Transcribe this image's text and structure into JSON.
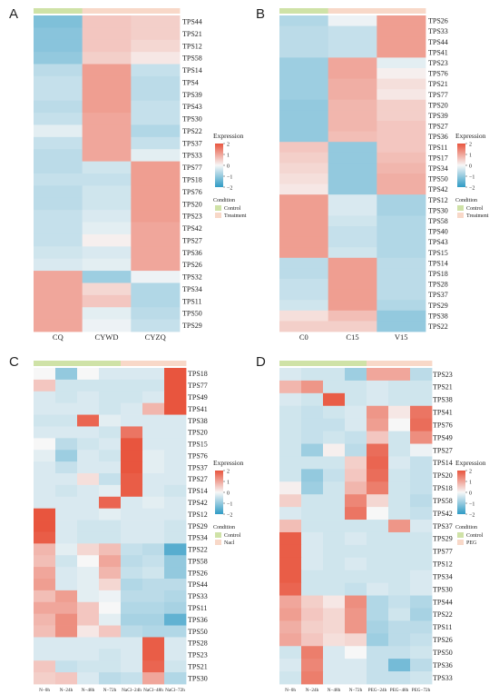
{
  "figure": {
    "colors": {
      "low": "#2f9bc5",
      "mid": "#f7f7f7",
      "high": "#e8553e",
      "control_bar": "#cfe2a7",
      "treatment_bar": "#f8d8c8"
    }
  },
  "legend": {
    "expression_title": "Expression",
    "expression_ticks": [
      "2",
      "1",
      "0",
      "−1",
      "−2"
    ],
    "condition_title": "Condition"
  },
  "chart_data": [
    {
      "type": "heatmap",
      "panel_label": "A",
      "scale": [
        -2,
        2
      ],
      "conditions": [
        "Control",
        "Treatment"
      ],
      "column_conditions": [
        "Control",
        "Treatment",
        "Treatment"
      ],
      "columns": [
        "CQ",
        "CYWD",
        "CYZQ"
      ],
      "rows": [
        "TPS44",
        "TPS21",
        "TPS12",
        "TPS58",
        "TPS14",
        "TPS4",
        "TPS39",
        "TPS43",
        "TPS30",
        "TPS22",
        "TPS37",
        "TPS33",
        "TPS77",
        "TPS18",
        "TPS76",
        "TPS20",
        "TPS23",
        "TPS42",
        "TPS27",
        "TPS36",
        "TPS26",
        "TPS32",
        "TPS34",
        "TPS11",
        "TPS50",
        "TPS29"
      ],
      "values": [
        [
          -1.2,
          0.6,
          0.5
        ],
        [
          -1.1,
          0.6,
          0.5
        ],
        [
          -1.1,
          0.6,
          0.4
        ],
        [
          -1.0,
          0.5,
          0.2
        ],
        [
          -0.6,
          1.1,
          -0.5
        ],
        [
          -0.5,
          1.1,
          -0.6
        ],
        [
          -0.5,
          1.1,
          -0.6
        ],
        [
          -0.6,
          1.1,
          -0.5
        ],
        [
          -0.5,
          1.0,
          -0.5
        ],
        [
          -0.2,
          1.0,
          -0.7
        ],
        [
          -0.5,
          1.0,
          -0.5
        ],
        [
          -0.6,
          1.0,
          -0.2
        ],
        [
          -0.6,
          -0.4,
          1.1
        ],
        [
          -0.5,
          -0.5,
          1.1
        ],
        [
          -0.6,
          -0.4,
          1.1
        ],
        [
          -0.6,
          -0.4,
          1.1
        ],
        [
          -0.5,
          -0.3,
          1.1
        ],
        [
          -0.5,
          -0.2,
          1.0
        ],
        [
          -0.5,
          0.1,
          1.0
        ],
        [
          -0.4,
          -0.3,
          1.0
        ],
        [
          -0.3,
          -0.2,
          1.0
        ],
        [
          1.0,
          -0.9,
          -0.1
        ],
        [
          1.0,
          0.4,
          -0.7
        ],
        [
          1.0,
          0.6,
          -0.7
        ],
        [
          1.0,
          -0.2,
          -0.6
        ],
        [
          1.0,
          -0.1,
          -0.5
        ]
      ]
    },
    {
      "type": "heatmap",
      "panel_label": "B",
      "scale": [
        -2,
        2
      ],
      "conditions": [
        "Control",
        "Treatment"
      ],
      "column_conditions": [
        "Control",
        "Treatment",
        "Treatment"
      ],
      "columns": [
        "C0",
        "C15",
        "V15"
      ],
      "rows": [
        "TPS26",
        "TPS33",
        "TPS44",
        "TPS41",
        "TPS23",
        "TPS76",
        "TPS21",
        "TPS77",
        "TPS20",
        "TPS39",
        "TPS27",
        "TPS36",
        "TPS11",
        "TPS17",
        "TPS34",
        "TPS50",
        "TPS42",
        "TPS12",
        "TPS30",
        "TPS58",
        "TPS40",
        "TPS43",
        "TPS15",
        "TPS14",
        "TPS18",
        "TPS28",
        "TPS37",
        "TPS29",
        "TPS38",
        "TPS22"
      ],
      "values": [
        [
          -0.7,
          -0.1,
          1.1
        ],
        [
          -0.6,
          -0.5,
          1.1
        ],
        [
          -0.6,
          -0.5,
          1.1
        ],
        [
          -0.6,
          -0.5,
          1.1
        ],
        [
          -0.9,
          1.0,
          -0.2
        ],
        [
          -0.9,
          1.0,
          0.1
        ],
        [
          -0.9,
          0.9,
          0.3
        ],
        [
          -0.9,
          0.9,
          0.2
        ],
        [
          -1.0,
          0.8,
          0.5
        ],
        [
          -1.0,
          0.8,
          0.5
        ],
        [
          -1.0,
          0.8,
          0.6
        ],
        [
          -1.0,
          0.7,
          0.6
        ],
        [
          0.6,
          -1.0,
          0.6
        ],
        [
          0.5,
          -1.0,
          0.7
        ],
        [
          0.4,
          -1.0,
          0.8
        ],
        [
          0.3,
          -1.0,
          0.9
        ],
        [
          0.2,
          -1.0,
          0.9
        ],
        [
          1.1,
          -0.3,
          -0.8
        ],
        [
          1.1,
          -0.3,
          -0.8
        ],
        [
          1.1,
          -0.4,
          -0.7
        ],
        [
          1.1,
          -0.5,
          -0.7
        ],
        [
          1.1,
          -0.5,
          -0.7
        ],
        [
          1.1,
          -0.4,
          -0.7
        ],
        [
          -0.6,
          1.1,
          -0.6
        ],
        [
          -0.6,
          1.1,
          -0.6
        ],
        [
          -0.5,
          1.1,
          -0.6
        ],
        [
          -0.5,
          1.1,
          -0.6
        ],
        [
          -0.4,
          1.1,
          -0.7
        ],
        [
          0.3,
          0.7,
          -1.0
        ],
        [
          0.5,
          0.5,
          -1.0
        ]
      ]
    },
    {
      "type": "heatmap",
      "panel_label": "C",
      "scale": [
        -2,
        2
      ],
      "conditions": [
        "Control",
        "Nacl"
      ],
      "column_conditions": [
        "Control",
        "Control",
        "Control",
        "Control",
        "Nacl",
        "Nacl",
        "Nacl"
      ],
      "columns": [
        "N−0h",
        "N−24h",
        "N−48h",
        "N−72h",
        "NaCl−24h",
        "NaCl−48h",
        "NaCl−72h"
      ],
      "rows": [
        "TPS18",
        "TPS77",
        "TPS49",
        "TPS41",
        "TPS38",
        "TPS20",
        "TPS15",
        "TPS76",
        "TPS37",
        "TPS27",
        "TPS14",
        "TPS42",
        "TPS12",
        "TPS29",
        "TPS34",
        "TPS22",
        "TPS58",
        "TPS26",
        "TPS44",
        "TPS33",
        "TPS11",
        "TPS36",
        "TPS50",
        "TPS28",
        "TPS23",
        "TPS21",
        "TPS30"
      ],
      "values": [
        [
          0.0,
          -1.0,
          0.0,
          -0.3,
          -0.3,
          -0.3,
          2.0
        ],
        [
          0.6,
          -0.4,
          -0.4,
          -0.4,
          -0.4,
          -0.4,
          2.0
        ],
        [
          -0.3,
          -0.4,
          -0.3,
          -0.4,
          -0.4,
          -0.3,
          2.0
        ],
        [
          -0.3,
          -0.3,
          -0.3,
          -0.4,
          -0.3,
          0.8,
          2.0
        ],
        [
          -0.4,
          -0.4,
          1.8,
          -0.2,
          -0.3,
          -0.3,
          -0.3
        ],
        [
          -0.3,
          -0.3,
          -0.3,
          -0.4,
          1.6,
          -0.3,
          -0.3
        ],
        [
          0.0,
          -0.6,
          -0.4,
          -0.3,
          2.0,
          -0.3,
          -0.3
        ],
        [
          -0.2,
          -0.9,
          -0.3,
          -0.4,
          2.0,
          -0.2,
          -0.3
        ],
        [
          -0.3,
          -0.5,
          -0.3,
          -0.3,
          2.0,
          -0.2,
          -0.3
        ],
        [
          -0.3,
          -0.3,
          0.3,
          -0.5,
          1.9,
          -0.3,
          -0.3
        ],
        [
          -0.3,
          -0.4,
          -0.3,
          -0.2,
          1.9,
          -0.3,
          -0.4
        ],
        [
          -0.3,
          -0.3,
          -0.3,
          1.8,
          -0.3,
          -0.2,
          -0.3
        ],
        [
          2.0,
          -0.3,
          -0.3,
          -0.2,
          -0.3,
          -0.3,
          -0.3
        ],
        [
          2.0,
          -0.3,
          -0.4,
          -0.4,
          -0.3,
          -0.3,
          -0.4
        ],
        [
          1.9,
          -0.3,
          -0.4,
          -0.4,
          -0.3,
          -0.3,
          -0.4
        ],
        [
          0.8,
          -0.2,
          0.4,
          0.7,
          -0.5,
          -0.6,
          -1.6
        ],
        [
          0.7,
          -0.4,
          0.0,
          1.0,
          -0.6,
          -0.5,
          -1.0
        ],
        [
          1.0,
          -0.3,
          -0.2,
          0.8,
          -0.5,
          -0.4,
          -1.0
        ],
        [
          1.1,
          -0.3,
          -0.2,
          0.4,
          -0.7,
          -0.6,
          -0.6
        ],
        [
          0.7,
          1.1,
          -0.2,
          -0.1,
          -0.6,
          -0.6,
          -0.7
        ],
        [
          1.0,
          1.0,
          0.6,
          0.0,
          -0.7,
          -0.7,
          -0.8
        ],
        [
          0.8,
          1.3,
          0.6,
          -0.2,
          -0.8,
          -0.8,
          -1.5
        ],
        [
          0.7,
          1.3,
          0.2,
          0.6,
          -0.6,
          -0.7,
          -0.7
        ],
        [
          -0.3,
          -0.3,
          -0.3,
          -0.3,
          -0.3,
          1.9,
          -0.3
        ],
        [
          -0.3,
          -0.3,
          -0.3,
          -0.4,
          -0.3,
          1.9,
          -0.3
        ],
        [
          0.6,
          -0.5,
          -0.4,
          -0.4,
          -0.3,
          1.8,
          -0.4
        ],
        [
          0.5,
          0.6,
          -0.3,
          -0.6,
          -0.5,
          1.0,
          -0.7
        ]
      ]
    },
    {
      "type": "heatmap",
      "panel_label": "D",
      "scale": [
        -2,
        2
      ],
      "conditions": [
        "Control",
        "PEG"
      ],
      "column_conditions": [
        "Control",
        "Control",
        "Control",
        "Control",
        "PEG",
        "PEG",
        "PEG"
      ],
      "columns": [
        "N−0h",
        "N−24h",
        "N−48h",
        "N−72h",
        "PEG−24h",
        "PEG−48h",
        "PEG−72h"
      ],
      "rows": [
        "TPS23",
        "TPS21",
        "TPS38",
        "TPS41",
        "TPS76",
        "TPS49",
        "TPS27",
        "TPS14",
        "TPS20",
        "TPS18",
        "TPS58",
        "TPS42",
        "TPS37",
        "TPS29",
        "TPS77",
        "TPS12",
        "TPS34",
        "TPS30",
        "TPS44",
        "TPS22",
        "TPS11",
        "TPS26",
        "TPS50",
        "TPS36",
        "TPS33"
      ],
      "values": [
        [
          -0.3,
          -0.4,
          -0.4,
          -0.9,
          1.0,
          1.0,
          -0.6
        ],
        [
          0.8,
          1.2,
          -0.4,
          -0.4,
          -0.3,
          -0.4,
          -0.4
        ],
        [
          -0.3,
          -0.4,
          1.9,
          -0.4,
          -0.3,
          -0.4,
          -0.4
        ],
        [
          -0.4,
          -0.5,
          -0.4,
          -0.3,
          1.2,
          0.2,
          1.6
        ],
        [
          -0.4,
          -0.5,
          -0.5,
          -0.3,
          1.1,
          0.0,
          1.7
        ],
        [
          -0.4,
          -0.5,
          -0.4,
          -0.5,
          0.6,
          -0.4,
          1.3
        ],
        [
          -0.4,
          -0.9,
          0.1,
          -0.6,
          1.7,
          -0.4,
          -0.1
        ],
        [
          -0.4,
          -0.4,
          -0.4,
          0.5,
          1.8,
          -0.3,
          -0.5
        ],
        [
          -0.4,
          -1.0,
          -0.5,
          0.6,
          1.7,
          -0.4,
          -0.5
        ],
        [
          0.1,
          -0.9,
          -0.4,
          0.8,
          1.5,
          -0.4,
          -0.5
        ],
        [
          0.5,
          -0.4,
          -0.4,
          1.4,
          0.4,
          -0.4,
          -0.6
        ],
        [
          -0.3,
          -0.4,
          -0.4,
          1.6,
          0.0,
          -0.4,
          -0.5
        ],
        [
          0.7,
          -0.4,
          -0.4,
          -0.4,
          -0.4,
          1.2,
          -0.3
        ],
        [
          1.9,
          -0.3,
          -0.4,
          -0.3,
          -0.4,
          -0.4,
          -0.4
        ],
        [
          1.9,
          -0.3,
          -0.4,
          -0.4,
          -0.4,
          -0.4,
          -0.4
        ],
        [
          1.9,
          -0.3,
          -0.4,
          -0.3,
          -0.4,
          -0.4,
          -0.4
        ],
        [
          1.9,
          -0.4,
          -0.4,
          -0.4,
          -0.4,
          -0.4,
          -0.3
        ],
        [
          1.8,
          -0.4,
          -0.4,
          -0.5,
          -0.3,
          -0.4,
          -0.3
        ],
        [
          1.0,
          0.5,
          0.2,
          1.3,
          -0.7,
          -0.5,
          -0.7
        ],
        [
          1.1,
          0.6,
          0.4,
          1.2,
          -0.7,
          -0.4,
          -0.8
        ],
        [
          0.9,
          0.5,
          0.4,
          1.2,
          -0.8,
          -0.6,
          -0.6
        ],
        [
          1.0,
          0.6,
          0.3,
          0.4,
          -0.9,
          -0.6,
          -0.5
        ],
        [
          -0.4,
          1.5,
          -0.3,
          0.0,
          -0.5,
          -0.5,
          -0.4
        ],
        [
          -0.3,
          1.4,
          -0.3,
          -0.3,
          -0.5,
          -1.3,
          -0.6
        ],
        [
          -0.4,
          1.5,
          -0.3,
          -0.3,
          -0.5,
          -0.5,
          -0.4
        ]
      ]
    }
  ]
}
